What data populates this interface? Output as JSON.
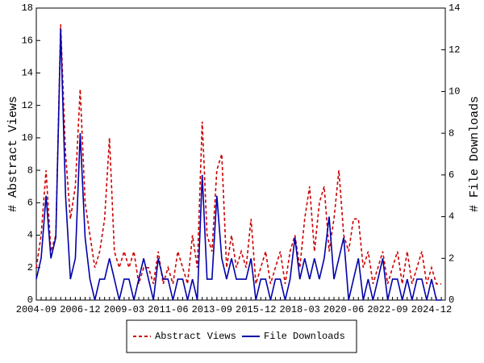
{
  "chart_data": {
    "type": "line",
    "y_label": "# Abstract Views",
    "y2_label": "# File Downloads",
    "categories": [
      "2004-09",
      null,
      null,
      null,
      null,
      null,
      null,
      null,
      null,
      "2006-12",
      null,
      null,
      null,
      null,
      null,
      null,
      null,
      null,
      "2009-03",
      null,
      null,
      null,
      null,
      null,
      null,
      null,
      null,
      "2011-06",
      null,
      null,
      null,
      null,
      null,
      null,
      null,
      null,
      "2013-09",
      null,
      null,
      null,
      null,
      null,
      null,
      null,
      null,
      "2015-12",
      null,
      null,
      null,
      null,
      null,
      null,
      null,
      null,
      "2018-03",
      null,
      null,
      null,
      null,
      null,
      null,
      null,
      null,
      "2020-06",
      null,
      null,
      null,
      null,
      null,
      null,
      null,
      null,
      "2022-09",
      null,
      null,
      null,
      null,
      null,
      null,
      null,
      null,
      "2024-12",
      null,
      null
    ],
    "ylim": [
      0,
      18
    ],
    "yticks": [
      0,
      2,
      4,
      6,
      8,
      10,
      12,
      14,
      16,
      18
    ],
    "y2lim": [
      0,
      14
    ],
    "y2ticks": [
      0,
      2,
      4,
      6,
      8,
      10,
      12,
      14
    ],
    "series": [
      {
        "name": "Abstract Views",
        "color": "#cc0000",
        "dashed": true,
        "values": [
          2,
          4,
          8,
          3,
          4,
          17,
          9,
          5,
          7,
          13,
          6,
          4,
          2,
          3,
          5,
          10,
          3,
          2,
          3,
          2,
          3,
          1,
          2,
          2,
          1,
          3,
          1,
          2,
          1,
          3,
          2,
          1,
          4,
          2,
          11,
          4,
          3,
          8,
          9,
          2,
          4,
          2,
          3,
          2,
          5,
          1,
          2,
          3,
          1,
          2,
          3,
          1,
          3,
          4,
          2,
          5,
          7,
          3,
          6,
          7,
          3,
          5,
          8,
          4,
          3,
          5,
          5,
          2,
          3,
          1,
          2,
          3,
          1,
          2,
          3,
          1,
          3,
          1,
          2,
          3,
          1,
          2,
          1,
          1
        ]
      },
      {
        "name": "File Downloads",
        "color": "#0000aa",
        "axis": "y2",
        "dashed": false,
        "values": [
          1,
          2,
          5,
          2,
          3,
          13,
          5,
          1,
          2,
          8,
          3,
          1,
          0,
          1,
          1,
          2,
          1,
          0,
          1,
          1,
          0,
          1,
          2,
          1,
          0,
          2,
          1,
          1,
          0,
          1,
          1,
          0,
          1,
          0,
          6,
          1,
          1,
          5,
          2,
          1,
          2,
          1,
          1,
          1,
          2,
          0,
          1,
          1,
          0,
          1,
          1,
          0,
          1,
          3,
          1,
          2,
          1,
          2,
          1,
          2,
          4,
          1,
          2,
          3,
          0,
          1,
          2,
          0,
          1,
          0,
          1,
          2,
          0,
          1,
          1,
          0,
          1,
          0,
          1,
          1,
          0,
          1,
          0,
          0
        ]
      }
    ]
  }
}
